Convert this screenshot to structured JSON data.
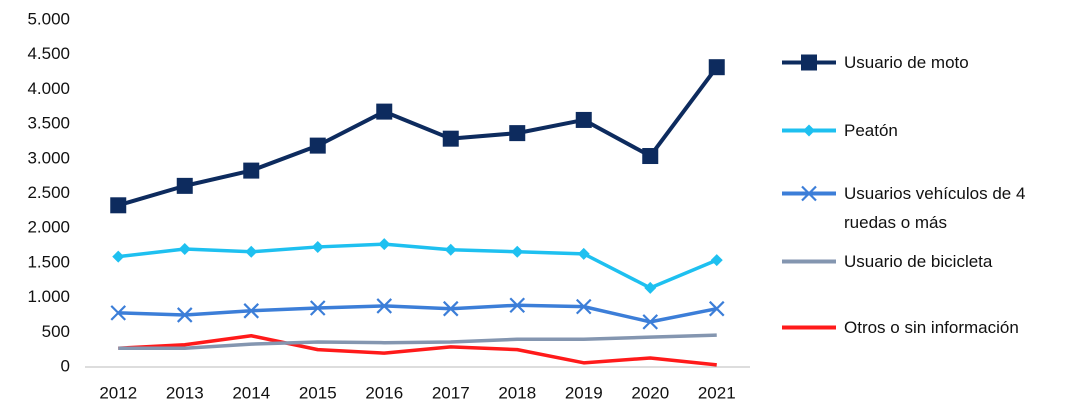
{
  "chart_data": {
    "type": "line",
    "categories": [
      "2012",
      "2013",
      "2014",
      "2015",
      "2016",
      "2017",
      "2018",
      "2019",
      "2020",
      "2021"
    ],
    "series": [
      {
        "name": "Usuario de moto",
        "color": "#0d2b5e",
        "marker": "square",
        "values": [
          2330,
          2610,
          2830,
          3190,
          3680,
          3290,
          3370,
          3560,
          3040,
          4320
        ]
      },
      {
        "name": "Peatón",
        "color": "#1ec0f0",
        "marker": "diamond",
        "values": [
          1590,
          1700,
          1660,
          1730,
          1770,
          1690,
          1660,
          1630,
          1140,
          1540
        ]
      },
      {
        "name": "Usuarios vehículos de 4 ruedas o más",
        "color": "#3c7ed8",
        "marker": "x",
        "values": [
          780,
          750,
          810,
          850,
          880,
          840,
          890,
          870,
          650,
          840
        ]
      },
      {
        "name": "Usuario de bicicleta",
        "color": "#8496b0",
        "marker": "none",
        "values": [
          270,
          270,
          330,
          360,
          350,
          360,
          400,
          400,
          430,
          460
        ]
      },
      {
        "name": "Otros o sin información",
        "color": "#ff1a1a",
        "marker": "none",
        "values": [
          270,
          320,
          450,
          250,
          200,
          290,
          250,
          60,
          130,
          30
        ]
      }
    ],
    "ylim": [
      0,
      5000
    ],
    "yticks": [
      0,
      500,
      {
        "value": 1000,
        "label": "1.000"
      },
      {
        "value": 1500,
        "label": "1.500"
      },
      {
        "value": 2000,
        "label": "2.000"
      },
      {
        "value": 2500,
        "label": "2.500"
      },
      {
        "value": 3000,
        "label": "3.000"
      },
      {
        "value": 3500,
        "label": "3.500"
      },
      {
        "value": 4000,
        "label": "4.000"
      },
      {
        "value": 4500,
        "label": "4.500"
      },
      {
        "value": 5000,
        "label": "5.000"
      }
    ],
    "grid": false,
    "legend": "right"
  }
}
